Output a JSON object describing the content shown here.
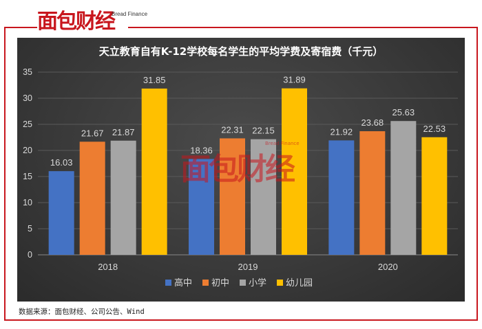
{
  "header": {
    "logo_text": "面包财经",
    "logo_en": "Bread Finance"
  },
  "colors": {
    "accent": "#c8161d",
    "panel": "#3a3a3a"
  },
  "chart_data": {
    "type": "bar",
    "title": "天立教育自有K-12学校每名学生的平均学费及寄宿费（千元）",
    "categories": [
      "2018",
      "2019",
      "2020"
    ],
    "series": [
      {
        "name": "高中",
        "color": "#4472c4",
        "values": [
          16.03,
          18.36,
          21.92
        ]
      },
      {
        "name": "初中",
        "color": "#ed7d31",
        "values": [
          21.67,
          22.31,
          23.68
        ]
      },
      {
        "name": "小学",
        "color": "#a5a5a5",
        "values": [
          21.87,
          22.15,
          25.63
        ]
      },
      {
        "name": "幼儿园",
        "color": "#ffc000",
        "values": [
          31.85,
          31.89,
          22.53
        ]
      }
    ],
    "ylim": [
      0,
      35
    ],
    "yticks": [
      "0",
      "5",
      "10",
      "15",
      "20",
      "25",
      "30",
      "35"
    ],
    "grid": true,
    "legend_position": "bottom",
    "xlabel": "",
    "ylabel": ""
  },
  "watermark": {
    "text": "面包财经",
    "en": "Bread Finance"
  },
  "footer": {
    "source": "数据来源：面包财经、公司公告、Wind"
  }
}
